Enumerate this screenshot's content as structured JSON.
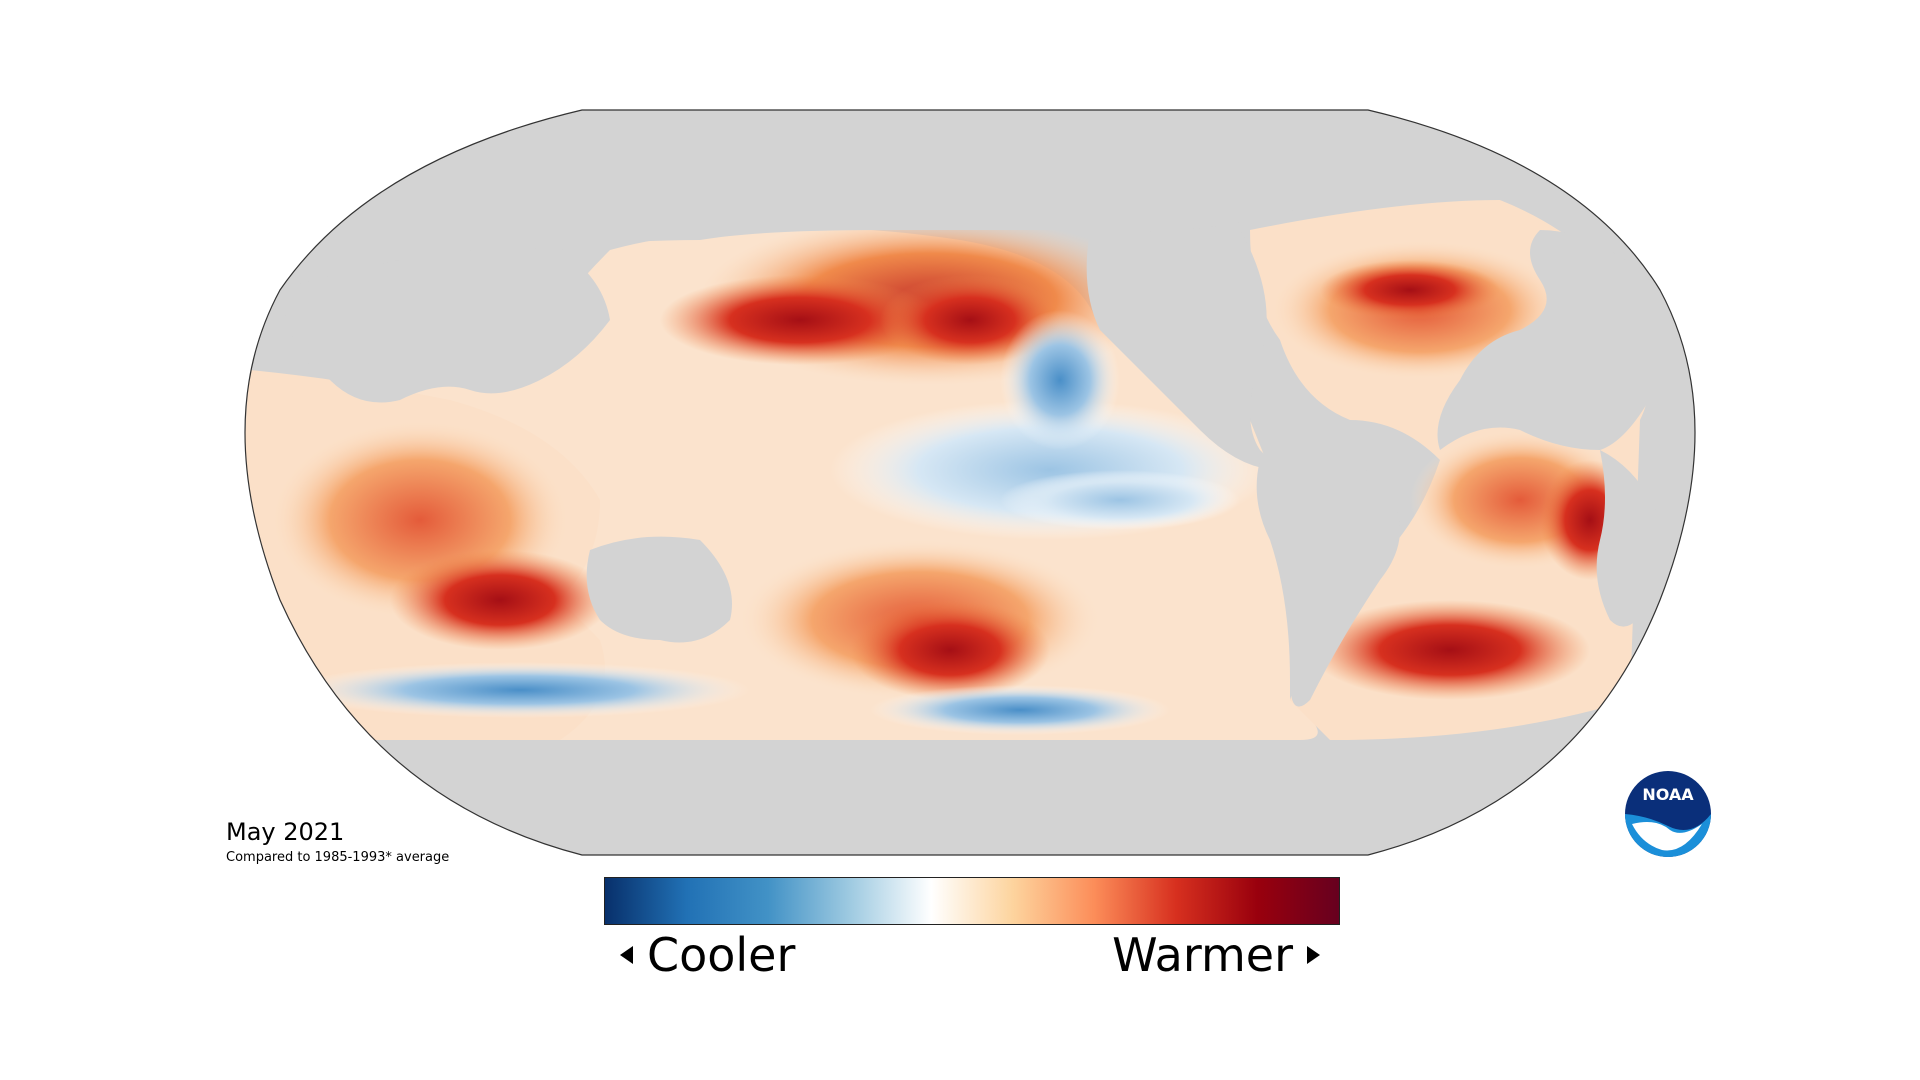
{
  "map": {
    "projection": "Robinson",
    "land_color": "#d3d3d3",
    "outline_color": "#333333",
    "ocean_anomaly_palette": [
      "#08306b",
      "#2a7ab9",
      "#9cc4e4",
      "#ffffff",
      "#fdd49e",
      "#f08a4b",
      "#c7362b",
      "#67001f"
    ]
  },
  "caption": {
    "title": "May 2021",
    "subtitle": "Compared to 1985-1993* average"
  },
  "legend": {
    "left_label": "Cooler",
    "right_label": "Warmer",
    "gradient": [
      "#08306b",
      "#2171b5",
      "#4292c6",
      "#9ecae1",
      "#ffffff",
      "#fdd49e",
      "#fc8d59",
      "#d7301f",
      "#99000d",
      "#67001f"
    ]
  },
  "logo": {
    "text": "NOAA",
    "icon": "noaa-logo-icon"
  }
}
